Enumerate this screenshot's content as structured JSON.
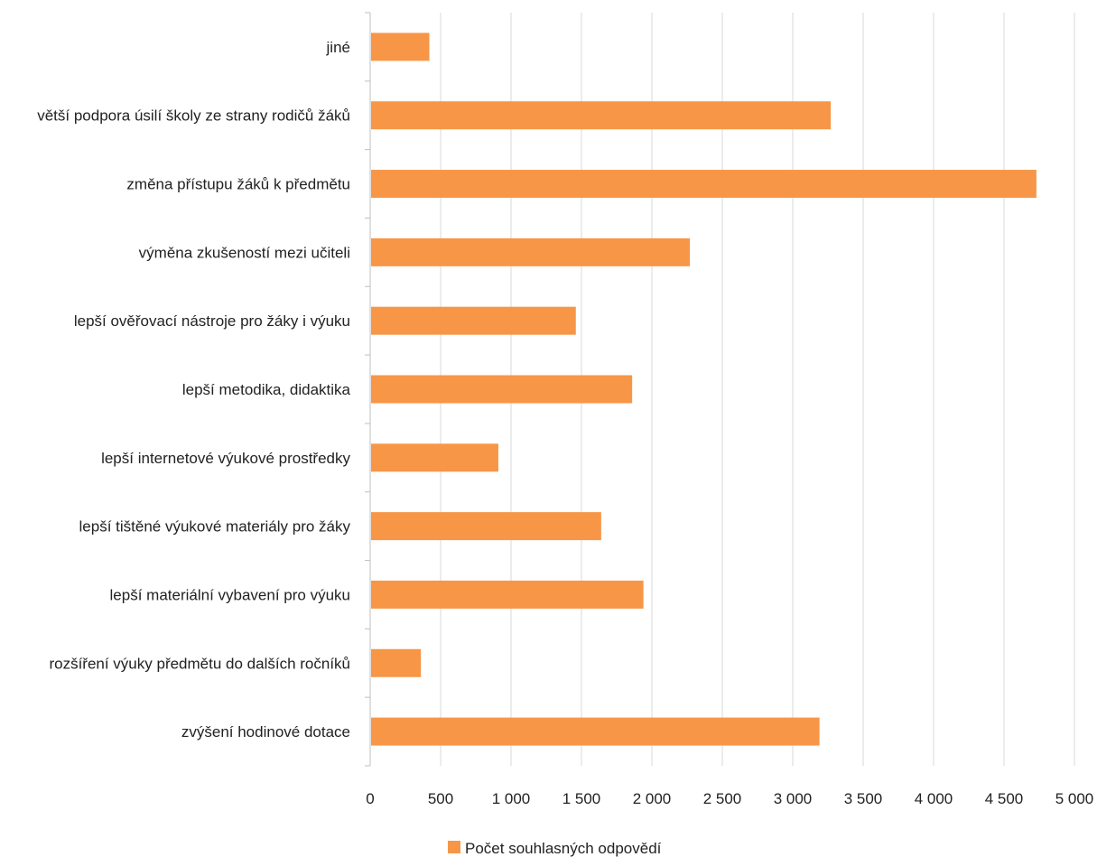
{
  "chart_data": {
    "type": "bar",
    "orientation": "horizontal",
    "categories": [
      "jiné",
      "větší podpora úsilí školy ze strany rodičů žáků",
      "změna přístupu žáků k předmětu",
      "výměna zkušeností mezi učiteli",
      "lepší ověřovací nástroje pro žáky i výuku",
      "lepší metodika, didaktika",
      "lepší internetové výukové prostředky",
      "lepší tištěné výukové materiály pro žáky",
      "lepší materiální vybavení pro výuku",
      "rozšíření výuky předmětu do dalších ročníků",
      "zvýšení hodinové dotace"
    ],
    "series": [
      {
        "name": "Počet souhlasných odpovědí",
        "color": "#f79646",
        "values": [
          420,
          3270,
          4730,
          2270,
          1460,
          1860,
          910,
          1640,
          1940,
          360,
          3190
        ]
      }
    ],
    "xlim": [
      0,
      5000
    ],
    "xticks": [
      0,
      500,
      1000,
      1500,
      2000,
      2500,
      3000,
      3500,
      4000,
      4500,
      5000
    ],
    "xtick_labels": [
      "0",
      "500",
      "1 000",
      "1 500",
      "2 000",
      "2 500",
      "3 000",
      "3 500",
      "4 000",
      "4 500",
      "5 000"
    ],
    "grid": "vertical",
    "legend": "bottom"
  }
}
